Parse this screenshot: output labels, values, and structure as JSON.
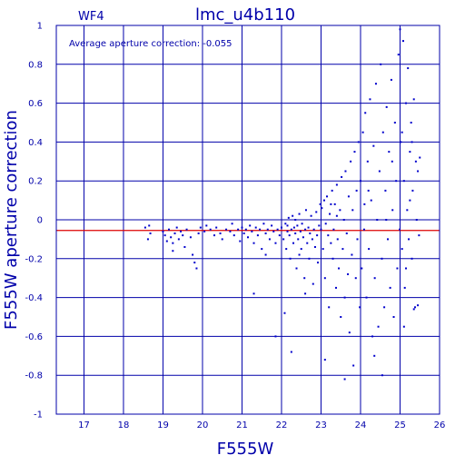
{
  "chart_data": {
    "type": "scatter",
    "title": "lmc_u4b110",
    "chip_label": "WF4",
    "annotation": "Average aperture correction: -0.055",
    "xlabel": "F555W",
    "ylabel": "F555W aperture correction",
    "xlim": [
      16.3,
      26.0
    ],
    "ylim": [
      -1.0,
      1.0
    ],
    "x_ticks": [
      "17",
      "18",
      "19",
      "20",
      "21",
      "22",
      "23",
      "24",
      "25",
      "26"
    ],
    "y_ticks": [
      "1",
      "0.8",
      "0.6",
      "0.4",
      "0.2",
      "0",
      "-0.2",
      "-0.4",
      "-0.6",
      "-0.8",
      "-1"
    ],
    "x_tick_values": [
      17,
      18,
      19,
      20,
      21,
      22,
      23,
      24,
      25,
      26
    ],
    "y_tick_values": [
      1,
      0.8,
      0.6,
      0.4,
      0.2,
      0,
      -0.2,
      -0.4,
      -0.6,
      -0.8,
      -1
    ],
    "grid": true,
    "reference_line_y": -0.055,
    "colors": {
      "axis": "#0000aa",
      "points": "#0000cc",
      "reference": "#dd0000"
    },
    "points": [
      {
        "x": 18.55,
        "y": -0.04
      },
      {
        "x": 18.65,
        "y": -0.03
      },
      {
        "x": 18.68,
        "y": -0.07
      },
      {
        "x": 18.62,
        "y": -0.1
      },
      {
        "x": 19.0,
        "y": -0.06
      },
      {
        "x": 19.05,
        "y": -0.08
      },
      {
        "x": 19.1,
        "y": -0.11
      },
      {
        "x": 19.15,
        "y": -0.05
      },
      {
        "x": 19.2,
        "y": -0.09
      },
      {
        "x": 19.25,
        "y": -0.12
      },
      {
        "x": 19.3,
        "y": -0.07
      },
      {
        "x": 19.35,
        "y": -0.04
      },
      {
        "x": 19.4,
        "y": -0.1
      },
      {
        "x": 19.45,
        "y": -0.06
      },
      {
        "x": 19.5,
        "y": -0.08
      },
      {
        "x": 19.55,
        "y": -0.14
      },
      {
        "x": 19.6,
        "y": -0.05
      },
      {
        "x": 19.7,
        "y": -0.09
      },
      {
        "x": 19.75,
        "y": -0.18
      },
      {
        "x": 19.8,
        "y": -0.22
      },
      {
        "x": 19.85,
        "y": -0.25
      },
      {
        "x": 19.9,
        "y": -0.07
      },
      {
        "x": 19.95,
        "y": -0.04
      },
      {
        "x": 19.25,
        "y": -0.16
      },
      {
        "x": 20.05,
        "y": -0.06
      },
      {
        "x": 20.1,
        "y": -0.03
      },
      {
        "x": 20.2,
        "y": -0.05
      },
      {
        "x": 20.3,
        "y": -0.08
      },
      {
        "x": 20.35,
        "y": -0.04
      },
      {
        "x": 20.45,
        "y": -0.07
      },
      {
        "x": 20.5,
        "y": -0.1
      },
      {
        "x": 20.6,
        "y": -0.05
      },
      {
        "x": 20.7,
        "y": -0.06
      },
      {
        "x": 20.75,
        "y": -0.02
      },
      {
        "x": 20.8,
        "y": -0.08
      },
      {
        "x": 20.9,
        "y": -0.05
      },
      {
        "x": 20.95,
        "y": -0.11
      },
      {
        "x": 21.0,
        "y": -0.04
      },
      {
        "x": 21.05,
        "y": -0.07
      },
      {
        "x": 21.1,
        "y": -0.05
      },
      {
        "x": 21.15,
        "y": -0.09
      },
      {
        "x": 21.2,
        "y": -0.03
      },
      {
        "x": 21.25,
        "y": -0.06
      },
      {
        "x": 21.3,
        "y": -0.12
      },
      {
        "x": 21.35,
        "y": -0.04
      },
      {
        "x": 21.4,
        "y": -0.08
      },
      {
        "x": 21.45,
        "y": -0.05
      },
      {
        "x": 21.5,
        "y": -0.15
      },
      {
        "x": 21.55,
        "y": -0.02
      },
      {
        "x": 21.6,
        "y": -0.07
      },
      {
        "x": 21.65,
        "y": -0.05
      },
      {
        "x": 21.7,
        "y": -0.1
      },
      {
        "x": 21.75,
        "y": -0.03
      },
      {
        "x": 21.8,
        "y": -0.06
      },
      {
        "x": 21.85,
        "y": -0.12
      },
      {
        "x": 21.9,
        "y": -0.05
      },
      {
        "x": 21.95,
        "y": -0.08
      },
      {
        "x": 21.3,
        "y": -0.38
      },
      {
        "x": 21.85,
        "y": -0.6
      },
      {
        "x": 21.6,
        "y": -0.18
      },
      {
        "x": 22.0,
        "y": -0.04
      },
      {
        "x": 22.05,
        "y": -0.1
      },
      {
        "x": 22.1,
        "y": -0.02
      },
      {
        "x": 22.12,
        "y": -0.15
      },
      {
        "x": 22.15,
        "y": -0.06
      },
      {
        "x": 22.18,
        "y": 0.01
      },
      {
        "x": 22.2,
        "y": -0.08
      },
      {
        "x": 22.22,
        "y": -0.2
      },
      {
        "x": 22.25,
        "y": -0.05
      },
      {
        "x": 22.28,
        "y": 0.02
      },
      {
        "x": 22.3,
        "y": -0.12
      },
      {
        "x": 22.32,
        "y": -0.04
      },
      {
        "x": 22.35,
        "y": -0.07
      },
      {
        "x": 22.38,
        "y": -0.25
      },
      {
        "x": 22.4,
        "y": -0.03
      },
      {
        "x": 22.42,
        "y": -0.1
      },
      {
        "x": 22.45,
        "y": 0.03
      },
      {
        "x": 22.48,
        "y": -0.06
      },
      {
        "x": 22.5,
        "y": -0.15
      },
      {
        "x": 22.52,
        "y": -0.02
      },
      {
        "x": 22.55,
        "y": -0.09
      },
      {
        "x": 22.58,
        "y": -0.3
      },
      {
        "x": 22.6,
        "y": -0.05
      },
      {
        "x": 22.62,
        "y": 0.05
      },
      {
        "x": 22.65,
        "y": -0.12
      },
      {
        "x": 22.68,
        "y": -0.04
      },
      {
        "x": 22.7,
        "y": -0.2
      },
      {
        "x": 22.72,
        "y": -0.07
      },
      {
        "x": 22.75,
        "y": 0.02
      },
      {
        "x": 22.78,
        "y": -0.1
      },
      {
        "x": 22.8,
        "y": -0.33
      },
      {
        "x": 22.82,
        "y": -0.05
      },
      {
        "x": 22.85,
        "y": -0.14
      },
      {
        "x": 22.88,
        "y": 0.04
      },
      {
        "x": 22.9,
        "y": -0.08
      },
      {
        "x": 22.92,
        "y": -0.22
      },
      {
        "x": 22.95,
        "y": -0.03
      },
      {
        "x": 22.98,
        "y": 0.08
      },
      {
        "x": 22.08,
        "y": -0.48
      },
      {
        "x": 22.25,
        "y": -0.68
      },
      {
        "x": 22.6,
        "y": -0.38
      },
      {
        "x": 22.35,
        "y": 0.0
      },
      {
        "x": 22.15,
        "y": -0.03
      },
      {
        "x": 22.45,
        "y": -0.18
      },
      {
        "x": 23.0,
        "y": -0.05
      },
      {
        "x": 23.02,
        "y": 0.06
      },
      {
        "x": 23.05,
        "y": -0.15
      },
      {
        "x": 23.08,
        "y": 0.1
      },
      {
        "x": 23.1,
        "y": -0.3
      },
      {
        "x": 23.12,
        "y": -0.02
      },
      {
        "x": 23.15,
        "y": 0.12
      },
      {
        "x": 23.18,
        "y": -0.08
      },
      {
        "x": 23.2,
        "y": -0.45
      },
      {
        "x": 23.22,
        "y": 0.03
      },
      {
        "x": 23.25,
        "y": -0.12
      },
      {
        "x": 23.28,
        "y": 0.15
      },
      {
        "x": 23.3,
        "y": -0.2
      },
      {
        "x": 23.32,
        "y": -0.05
      },
      {
        "x": 23.35,
        "y": 0.08
      },
      {
        "x": 23.38,
        "y": -0.35
      },
      {
        "x": 23.4,
        "y": 0.18
      },
      {
        "x": 23.42,
        "y": -0.1
      },
      {
        "x": 23.45,
        "y": -0.25
      },
      {
        "x": 23.48,
        "y": 0.05
      },
      {
        "x": 23.5,
        "y": -0.5
      },
      {
        "x": 23.52,
        "y": 0.22
      },
      {
        "x": 23.55,
        "y": -0.15
      },
      {
        "x": 23.58,
        "y": 0.0
      },
      {
        "x": 23.6,
        "y": -0.4
      },
      {
        "x": 23.62,
        "y": 0.25
      },
      {
        "x": 23.65,
        "y": -0.07
      },
      {
        "x": 23.68,
        "y": -0.28
      },
      {
        "x": 23.7,
        "y": 0.12
      },
      {
        "x": 23.72,
        "y": -0.58
      },
      {
        "x": 23.75,
        "y": 0.3
      },
      {
        "x": 23.78,
        "y": -0.18
      },
      {
        "x": 23.8,
        "y": 0.05
      },
      {
        "x": 23.82,
        "y": -0.75
      },
      {
        "x": 23.85,
        "y": 0.35
      },
      {
        "x": 23.88,
        "y": -0.3
      },
      {
        "x": 23.9,
        "y": 0.15
      },
      {
        "x": 23.92,
        "y": -0.1
      },
      {
        "x": 23.95,
        "y": 0.4
      },
      {
        "x": 23.98,
        "y": -0.45
      },
      {
        "x": 23.1,
        "y": -0.72
      },
      {
        "x": 23.6,
        "y": -0.82
      },
      {
        "x": 23.4,
        "y": 0.02
      },
      {
        "x": 23.25,
        "y": 0.08
      },
      {
        "x": 24.0,
        "y": 0.2
      },
      {
        "x": 24.03,
        "y": -0.25
      },
      {
        "x": 24.06,
        "y": 0.45
      },
      {
        "x": 24.09,
        "y": -0.05
      },
      {
        "x": 24.12,
        "y": 0.55
      },
      {
        "x": 24.15,
        "y": -0.4
      },
      {
        "x": 24.18,
        "y": 0.3
      },
      {
        "x": 24.21,
        "y": -0.15
      },
      {
        "x": 24.24,
        "y": 0.62
      },
      {
        "x": 24.27,
        "y": 0.1
      },
      {
        "x": 24.3,
        "y": -0.6
      },
      {
        "x": 24.33,
        "y": 0.38
      },
      {
        "x": 24.36,
        "y": -0.3
      },
      {
        "x": 24.39,
        "y": 0.7
      },
      {
        "x": 24.42,
        "y": 0.0
      },
      {
        "x": 24.45,
        "y": -0.55
      },
      {
        "x": 24.48,
        "y": 0.25
      },
      {
        "x": 24.51,
        "y": 0.8
      },
      {
        "x": 24.54,
        "y": -0.2
      },
      {
        "x": 24.57,
        "y": 0.45
      },
      {
        "x": 24.6,
        "y": -0.45
      },
      {
        "x": 24.63,
        "y": 0.15
      },
      {
        "x": 24.66,
        "y": 0.58
      },
      {
        "x": 24.69,
        "y": -0.1
      },
      {
        "x": 24.72,
        "y": 0.35
      },
      {
        "x": 24.75,
        "y": -0.35
      },
      {
        "x": 24.78,
        "y": 0.72
      },
      {
        "x": 24.81,
        "y": 0.05
      },
      {
        "x": 24.84,
        "y": -0.5
      },
      {
        "x": 24.87,
        "y": 0.5
      },
      {
        "x": 24.9,
        "y": 0.2
      },
      {
        "x": 24.93,
        "y": -0.25
      },
      {
        "x": 24.96,
        "y": 0.85
      },
      {
        "x": 24.99,
        "y": -0.05
      },
      {
        "x": 24.35,
        "y": -0.7
      },
      {
        "x": 24.55,
        "y": -0.8
      },
      {
        "x": 24.2,
        "y": 0.15
      },
      {
        "x": 24.8,
        "y": 0.3
      },
      {
        "x": 24.1,
        "y": 0.08
      },
      {
        "x": 24.65,
        "y": 0.0
      },
      {
        "x": 25.0,
        "y": 0.98
      },
      {
        "x": 25.02,
        "y": 0.4
      },
      {
        "x": 25.05,
        "y": -0.15
      },
      {
        "x": 25.08,
        "y": 0.92
      },
      {
        "x": 25.1,
        "y": 0.2
      },
      {
        "x": 25.12,
        "y": -0.35
      },
      {
        "x": 25.15,
        "y": 0.6
      },
      {
        "x": 25.18,
        "y": 0.05
      },
      {
        "x": 25.2,
        "y": 0.78
      },
      {
        "x": 25.22,
        "y": -0.1
      },
      {
        "x": 25.25,
        "y": 0.35
      },
      {
        "x": 25.28,
        "y": 0.5
      },
      {
        "x": 25.3,
        "y": -0.2
      },
      {
        "x": 25.32,
        "y": 0.15
      },
      {
        "x": 25.35,
        "y": 0.62
      },
      {
        "x": 25.38,
        "y": -0.45
      },
      {
        "x": 25.4,
        "y": 0.3
      },
      {
        "x": 25.42,
        "y": 0.0
      },
      {
        "x": 25.45,
        "y": 0.25
      },
      {
        "x": 25.48,
        "y": -0.08
      },
      {
        "x": 25.5,
        "y": 0.32
      },
      {
        "x": 25.1,
        "y": -0.55
      },
      {
        "x": 25.35,
        "y": -0.46
      },
      {
        "x": 25.25,
        "y": 0.1
      },
      {
        "x": 25.05,
        "y": 0.45
      },
      {
        "x": 25.15,
        "y": -0.25
      },
      {
        "x": 25.45,
        "y": -0.44
      },
      {
        "x": 25.3,
        "y": 0.4
      }
    ]
  }
}
